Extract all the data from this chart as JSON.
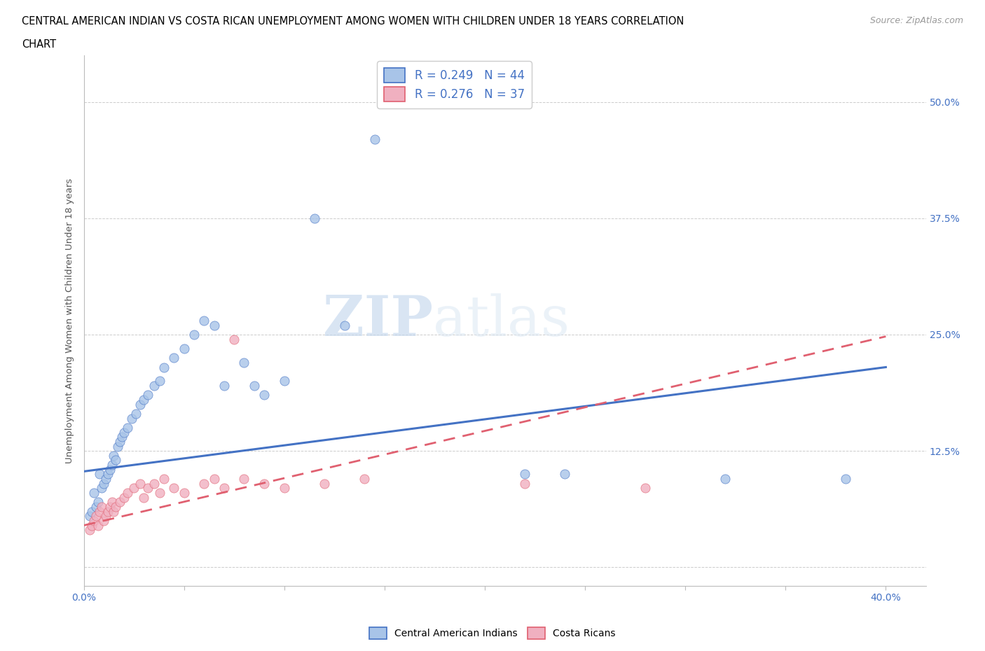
{
  "title_line1": "CENTRAL AMERICAN INDIAN VS COSTA RICAN UNEMPLOYMENT AMONG WOMEN WITH CHILDREN UNDER 18 YEARS CORRELATION",
  "title_line2": "CHART",
  "source": "Source: ZipAtlas.com",
  "ylabel": "Unemployment Among Women with Children Under 18 years",
  "xlim": [
    0.0,
    0.42
  ],
  "ylim": [
    -0.02,
    0.55
  ],
  "r_blue": 0.249,
  "n_blue": 44,
  "r_pink": 0.276,
  "n_pink": 37,
  "blue_color": "#a8c4e8",
  "pink_color": "#f0b0c0",
  "blue_line_color": "#4472c4",
  "pink_line_color": "#e06070",
  "legend_label_blue": "Central American Indians",
  "legend_label_pink": "Costa Ricans",
  "blue_scatter_x": [
    0.003,
    0.004,
    0.005,
    0.006,
    0.007,
    0.008,
    0.009,
    0.01,
    0.011,
    0.012,
    0.013,
    0.014,
    0.015,
    0.016,
    0.017,
    0.018,
    0.019,
    0.02,
    0.022,
    0.024,
    0.026,
    0.028,
    0.03,
    0.032,
    0.035,
    0.038,
    0.04,
    0.045,
    0.05,
    0.055,
    0.06,
    0.065,
    0.07,
    0.08,
    0.085,
    0.09,
    0.1,
    0.115,
    0.13,
    0.145,
    0.22,
    0.24,
    0.32,
    0.38
  ],
  "blue_scatter_y": [
    0.055,
    0.06,
    0.08,
    0.065,
    0.07,
    0.1,
    0.085,
    0.09,
    0.095,
    0.1,
    0.105,
    0.11,
    0.12,
    0.115,
    0.13,
    0.135,
    0.14,
    0.145,
    0.15,
    0.16,
    0.165,
    0.175,
    0.18,
    0.185,
    0.195,
    0.2,
    0.215,
    0.225,
    0.235,
    0.25,
    0.265,
    0.26,
    0.195,
    0.22,
    0.195,
    0.185,
    0.2,
    0.375,
    0.26,
    0.46,
    0.1,
    0.1,
    0.095,
    0.095
  ],
  "pink_scatter_x": [
    0.003,
    0.004,
    0.005,
    0.006,
    0.007,
    0.008,
    0.009,
    0.01,
    0.011,
    0.012,
    0.013,
    0.014,
    0.015,
    0.016,
    0.018,
    0.02,
    0.022,
    0.025,
    0.028,
    0.03,
    0.032,
    0.035,
    0.038,
    0.04,
    0.045,
    0.05,
    0.06,
    0.065,
    0.07,
    0.075,
    0.08,
    0.09,
    0.1,
    0.12,
    0.14,
    0.22,
    0.28
  ],
  "pink_scatter_y": [
    0.04,
    0.045,
    0.05,
    0.055,
    0.045,
    0.06,
    0.065,
    0.05,
    0.055,
    0.06,
    0.065,
    0.07,
    0.06,
    0.065,
    0.07,
    0.075,
    0.08,
    0.085,
    0.09,
    0.075,
    0.085,
    0.09,
    0.08,
    0.095,
    0.085,
    0.08,
    0.09,
    0.095,
    0.085,
    0.245,
    0.095,
    0.09,
    0.085,
    0.09,
    0.095,
    0.09,
    0.085
  ],
  "blue_line_x0": 0.0,
  "blue_line_y0": 0.103,
  "blue_line_x1": 0.4,
  "blue_line_y1": 0.215,
  "pink_line_x0": 0.0,
  "pink_line_y0": 0.045,
  "pink_line_x1": 0.4,
  "pink_line_y1": 0.248
}
